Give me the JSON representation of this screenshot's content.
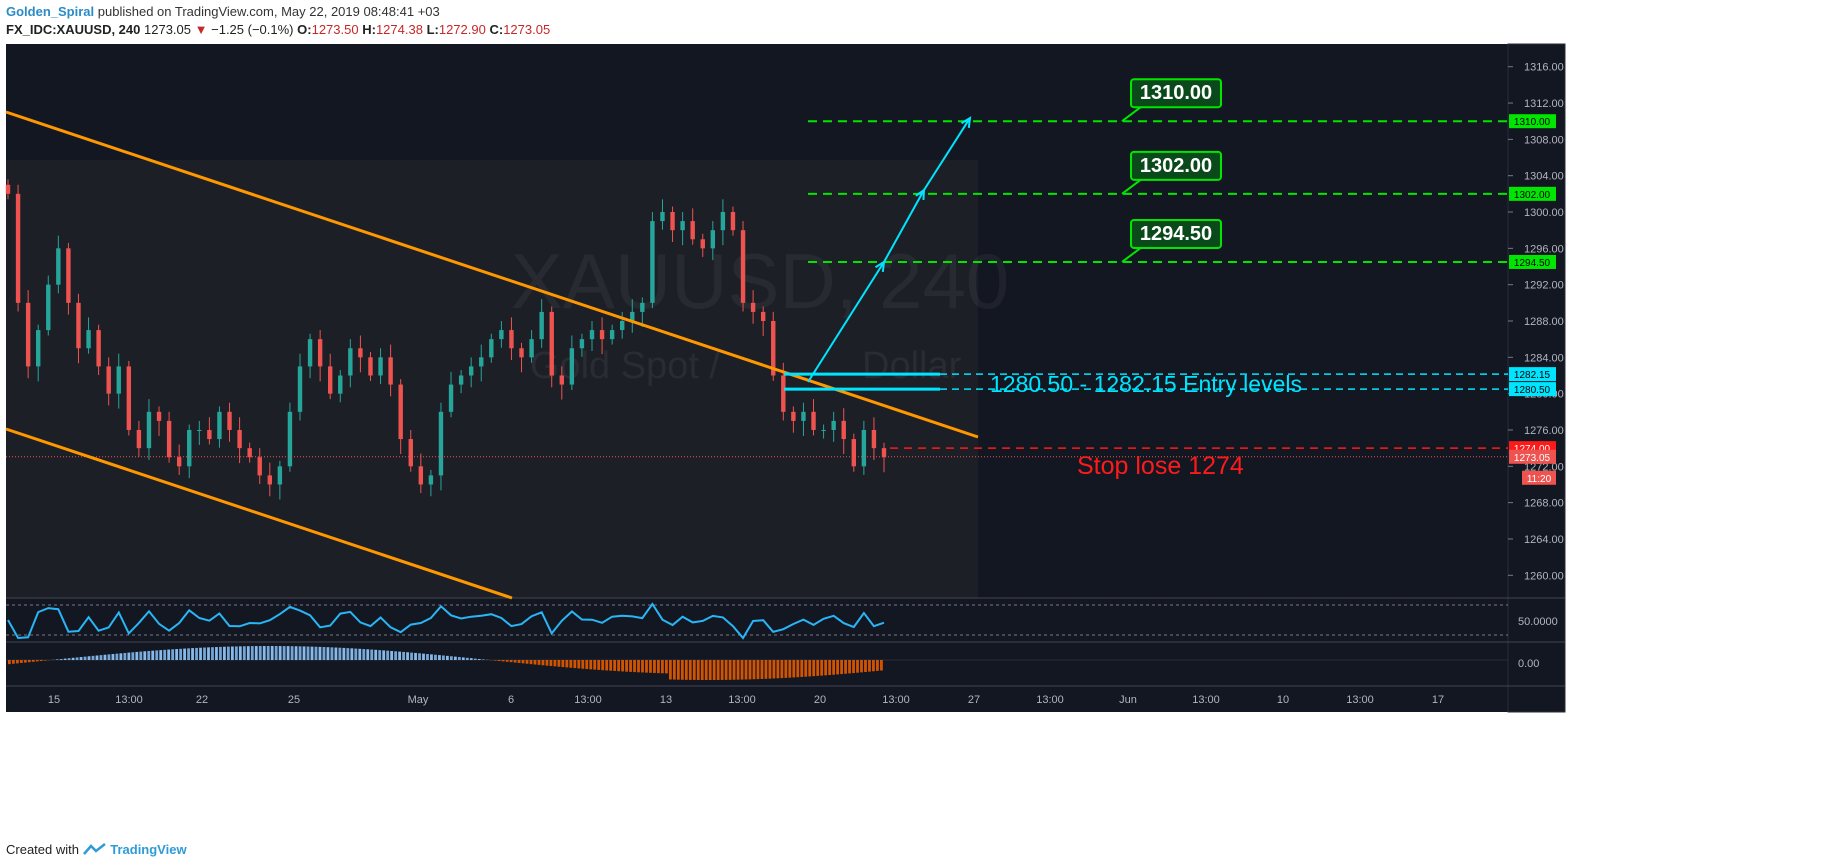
{
  "header": {
    "author": "Golden_Spiral",
    "published": "published on TradingView.com, May 22, 2019 08:48:41 +03",
    "symbol": "FX_IDC:XAUUSD, 240",
    "last": "1273.05",
    "change_arrow": "▼",
    "change": "−1.25 (−0.1%)",
    "o_label": "O:",
    "o": "1273.50",
    "h_label": "H:",
    "h": "1274.38",
    "l_label": "L:",
    "l": "1272.90",
    "c_label": "C:",
    "c": "1273.05"
  },
  "footer": {
    "created": "Created with",
    "brand": "TradingView",
    "logo_icon": "tradingview-logo-icon"
  },
  "watermark": {
    "symbol": "XAUUSD, 240",
    "desc_left": "Gold Spot /",
    "desc_right": "Dollar"
  },
  "colors": {
    "background": "#131722",
    "up": "#26a69a",
    "down": "#ef5350",
    "channel": "#ff9800",
    "target": "#00e600",
    "entry": "#00e5ff",
    "stop": "#ff1a1a",
    "rsi": "#29b6f6"
  },
  "chart_data": {
    "type": "candlestick",
    "timeframe": "240",
    "y_ticks": [
      "1260.00",
      "1264.00",
      "1268.00",
      "1272.00",
      "1276.00",
      "1280.00",
      "1284.00",
      "1288.00",
      "1292.00",
      "1296.00",
      "1300.00",
      "1304.00",
      "1308.00",
      "1312.00",
      "1316.00"
    ],
    "ylim": [
      1257.5,
      1318.5
    ],
    "x_ticks": [
      "15",
      "13:00",
      "22",
      "25",
      "May",
      "6",
      "13:00",
      "13",
      "13:00",
      "20",
      "13:00",
      "27",
      "13:00",
      "Jun",
      "13:00",
      "10",
      "13:00",
      "17"
    ],
    "close_series": [
      1302,
      1290,
      1283,
      1287,
      1292,
      1296,
      1290,
      1285,
      1287,
      1283,
      1280,
      1283,
      1276,
      1274,
      1278,
      1277,
      1273,
      1272,
      1276,
      1276,
      1275,
      1278,
      1276,
      1274,
      1273,
      1271,
      1270,
      1272,
      1278,
      1283,
      1286,
      1283,
      1280,
      1282,
      1285,
      1284,
      1282,
      1284,
      1281,
      1275,
      1272,
      1270,
      1271,
      1278,
      1281,
      1282,
      1283,
      1284,
      1286,
      1287,
      1285,
      1284,
      1286,
      1289,
      1282,
      1281,
      1285,
      1286,
      1287,
      1286,
      1287,
      1288,
      1289,
      1290,
      1299,
      1300,
      1298,
      1299,
      1297,
      1296,
      1298,
      1300,
      1298,
      1290,
      1289,
      1288,
      1282,
      1278,
      1277,
      1278,
      1276,
      1276,
      1277,
      1275,
      1272,
      1276,
      1274,
      1273
    ],
    "annotations": {
      "targets": [
        {
          "price": 1294.5,
          "label": "1294.50"
        },
        {
          "price": 1302.0,
          "label": "1302.00"
        },
        {
          "price": 1310.0,
          "label": "1310.00"
        }
      ],
      "entry": {
        "low": 1280.5,
        "high": 1282.15,
        "low_label": "1280.50",
        "high_label": "1282.15",
        "text": "1280.50 - 1282.15 Entry levels"
      },
      "stop": {
        "price": 1274.0,
        "label": "1274.00",
        "text": "Stop lose 1274"
      },
      "last_price": {
        "price": 1273.05,
        "label": "1273.05",
        "countdown": "11:20"
      }
    },
    "rsi_scale_label": "50.0000",
    "macd_scale_label": "0.00"
  }
}
